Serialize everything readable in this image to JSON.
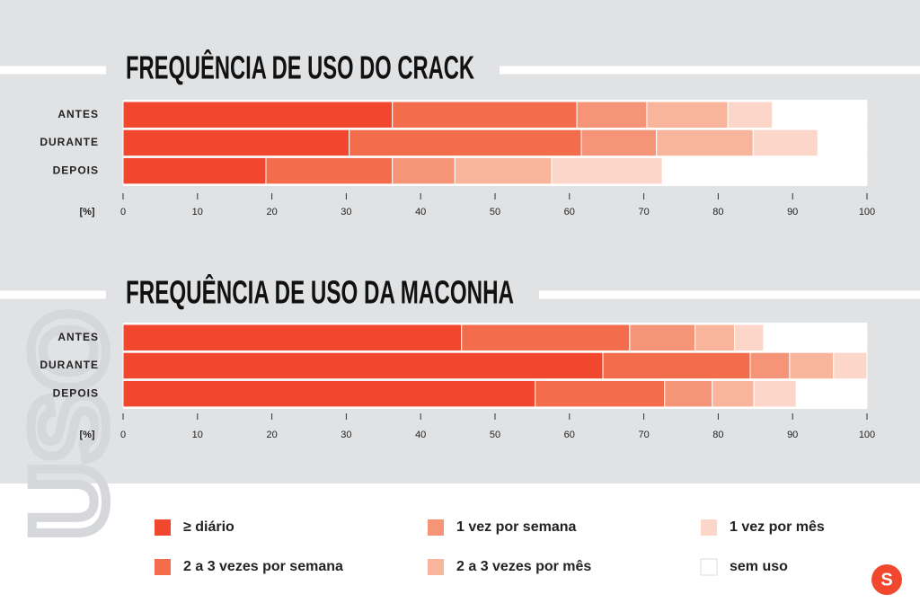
{
  "chart_data": [
    {
      "type": "bar",
      "orientation": "horizontal",
      "stacked": true,
      "title": "FREQUÊNCIA DE USO DO CRACK",
      "categories": [
        "ANTES",
        "DURANTE",
        "DEPOIS"
      ],
      "xlabel": "[%]",
      "xlim": [
        0,
        100
      ],
      "xticks": [
        0,
        10,
        20,
        30,
        40,
        50,
        60,
        70,
        80,
        90,
        100
      ],
      "series": [
        {
          "name": "≥ diário",
          "color": "#f0472e",
          "values": [
            36.2,
            30.4,
            19.2
          ]
        },
        {
          "name": "2 a 3 vezes por semana",
          "color": "#f36c4c",
          "values": [
            24.8,
            31.2,
            17.0
          ]
        },
        {
          "name": "1 vez por semana",
          "color": "#f69478",
          "values": [
            9.4,
            10.1,
            8.4
          ]
        },
        {
          "name": "2 a 3 vezes por mês",
          "color": "#f9b49c",
          "values": [
            10.9,
            13.0,
            13.0
          ]
        },
        {
          "name": "1 vez por mês",
          "color": "#fcd6c8",
          "values": [
            6.0,
            8.7,
            14.9
          ]
        },
        {
          "name": "sem uso",
          "color": "#ffffff",
          "values": [
            12.7,
            6.6,
            27.5
          ]
        }
      ]
    },
    {
      "type": "bar",
      "orientation": "horizontal",
      "stacked": true,
      "title": "FREQUÊNCIA DE USO DA MACONHA",
      "categories": [
        "ANTES",
        "DURANTE",
        "DEPOIS"
      ],
      "xlabel": "[%]",
      "xlim": [
        0,
        100
      ],
      "xticks": [
        0,
        10,
        20,
        30,
        40,
        50,
        60,
        70,
        80,
        90,
        100
      ],
      "series": [
        {
          "values": [
            45.5,
            64.5,
            55.4
          ]
        },
        {
          "values": [
            22.6,
            19.8,
            17.4
          ]
        },
        {
          "values": [
            8.8,
            5.3,
            6.4
          ]
        },
        {
          "values": [
            5.3,
            5.9,
            5.6
          ]
        },
        {
          "values": [
            3.9,
            4.5,
            5.7
          ]
        },
        {
          "values": [
            13.9,
            0,
            9.5
          ]
        }
      ]
    }
  ],
  "side_text": "USO",
  "logo": "S"
}
